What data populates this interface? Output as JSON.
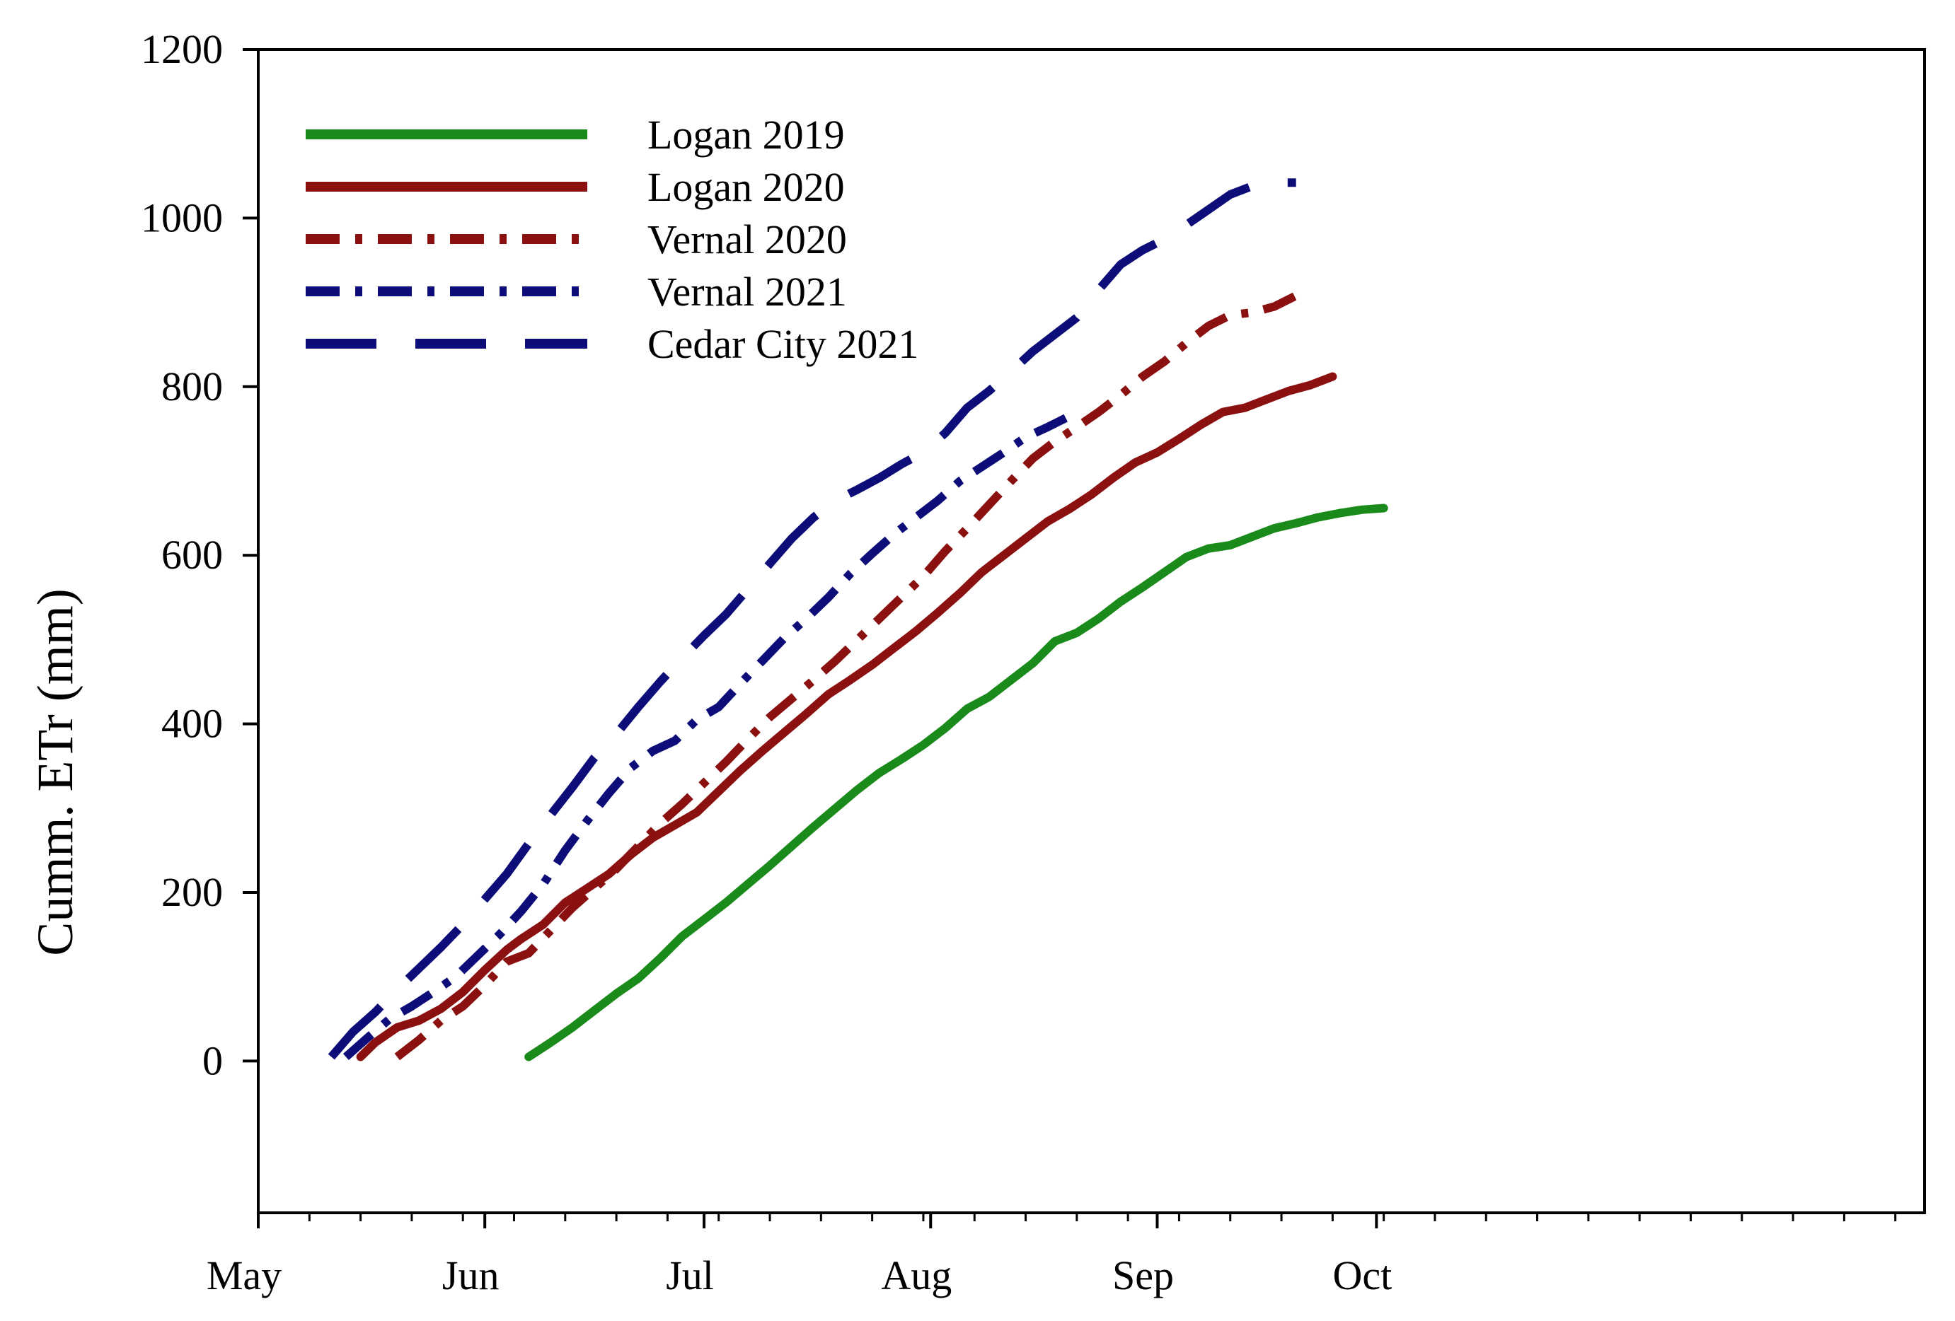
{
  "chart_data": {
    "type": "line",
    "title": "",
    "xlabel": "",
    "ylabel": "Cumm. ETr (mm)",
    "ylim": [
      -180,
      1200
    ],
    "yticks": [
      0,
      200,
      400,
      600,
      800,
      1000,
      1200
    ],
    "xlim": [
      121,
      349
    ],
    "xticks": [
      {
        "label": "May",
        "day": 121
      },
      {
        "label": "Jun",
        "day": 152
      },
      {
        "label": "Jul",
        "day": 182
      },
      {
        "label": "Aug",
        "day": 213
      },
      {
        "label": "Sep",
        "day": 244
      },
      {
        "label": "Oct",
        "day": 274
      }
    ],
    "x_units": "day of year",
    "grid": false,
    "legend_position": "top-left",
    "series": [
      {
        "name": "Logan 2019",
        "color": "#1a8a1a",
        "style": "solid",
        "x": [
          158,
          161,
          164,
          167,
          170,
          173,
          176,
          179,
          182,
          185,
          188,
          191,
          194,
          197,
          200,
          203,
          206,
          209,
          212,
          215,
          218,
          221,
          224,
          227,
          230,
          233,
          236,
          239,
          242,
          245,
          248,
          251,
          254,
          257,
          260,
          263,
          266,
          269,
          272,
          275
        ],
        "y": [
          5,
          22,
          40,
          60,
          80,
          98,
          122,
          148,
          168,
          188,
          210,
          232,
          255,
          278,
          300,
          322,
          342,
          358,
          375,
          395,
          418,
          432,
          452,
          472,
          498,
          508,
          525,
          545,
          562,
          580,
          598,
          608,
          612,
          622,
          632,
          638,
          645,
          650,
          654,
          656
        ]
      },
      {
        "name": "Logan 2020",
        "color": "#8b1010",
        "style": "solid",
        "x": [
          135,
          137,
          140,
          143,
          146,
          149,
          152,
          155,
          157,
          160,
          163,
          166,
          169,
          172,
          175,
          178,
          181,
          184,
          187,
          190,
          193,
          196,
          199,
          202,
          205,
          208,
          211,
          214,
          217,
          220,
          223,
          226,
          229,
          232,
          235,
          238,
          241,
          244,
          247,
          250,
          253,
          256,
          259,
          262,
          265,
          268
        ],
        "y": [
          5,
          22,
          40,
          48,
          62,
          82,
          108,
          132,
          145,
          162,
          188,
          205,
          222,
          245,
          265,
          280,
          295,
          320,
          345,
          368,
          390,
          412,
          435,
          452,
          470,
          490,
          510,
          532,
          555,
          580,
          600,
          620,
          640,
          655,
          672,
          692,
          710,
          722,
          738,
          755,
          770,
          775,
          785,
          795,
          802,
          812
        ]
      },
      {
        "name": "Vernal 2020",
        "color": "#8b1010",
        "style": "dashdot",
        "x": [
          140,
          143,
          146,
          149,
          152,
          155,
          158,
          161,
          164,
          167,
          170,
          173,
          176,
          179,
          182,
          185,
          188,
          191,
          194,
          197,
          200,
          203,
          206,
          209,
          212,
          215,
          218,
          221,
          224,
          227,
          230,
          233,
          236,
          239,
          242,
          245,
          248,
          251,
          254,
          257,
          260,
          263
        ],
        "y": [
          5,
          25,
          48,
          65,
          90,
          118,
          128,
          155,
          182,
          205,
          228,
          255,
          282,
          305,
          330,
          355,
          382,
          408,
          430,
          452,
          475,
          500,
          525,
          550,
          575,
          605,
          632,
          660,
          688,
          715,
          735,
          752,
          770,
          790,
          812,
          830,
          852,
          872,
          885,
          888,
          895,
          908
        ]
      },
      {
        "name": "Vernal 2021",
        "color": "#0d0d7a",
        "style": "dashdot",
        "x": [
          133,
          136,
          139,
          142,
          145,
          148,
          151,
          154,
          157,
          160,
          163,
          166,
          169,
          172,
          175,
          178,
          181,
          184,
          187,
          190,
          193,
          196,
          199,
          202,
          205,
          208,
          211,
          214,
          217,
          220,
          223,
          226,
          229,
          232
        ],
        "y": [
          5,
          28,
          50,
          65,
          82,
          100,
          125,
          150,
          178,
          210,
          250,
          285,
          318,
          348,
          368,
          380,
          405,
          420,
          448,
          475,
          502,
          525,
          550,
          578,
          602,
          625,
          645,
          665,
          688,
          705,
          722,
          740,
          752,
          765
        ]
      },
      {
        "name": "Cedar City 2021",
        "color": "#0d0d7a",
        "style": "longdash",
        "x": [
          131,
          134,
          137,
          140,
          143,
          146,
          149,
          152,
          155,
          158,
          161,
          164,
          167,
          170,
          173,
          176,
          179,
          182,
          185,
          188,
          191,
          194,
          197,
          200,
          203,
          206,
          209,
          212,
          215,
          218,
          221,
          224,
          227,
          230,
          233,
          236,
          239,
          242,
          245,
          248,
          251,
          254,
          257,
          260,
          263
        ],
        "y": [
          5,
          35,
          58,
          85,
          110,
          135,
          162,
          192,
          222,
          258,
          292,
          325,
          360,
          388,
          420,
          450,
          478,
          505,
          530,
          560,
          590,
          620,
          645,
          665,
          678,
          692,
          708,
          722,
          745,
          775,
          795,
          818,
          842,
          862,
          882,
          915,
          945,
          962,
          975,
          992,
          1010,
          1028,
          1038,
          1042,
          1042
        ]
      }
    ]
  }
}
